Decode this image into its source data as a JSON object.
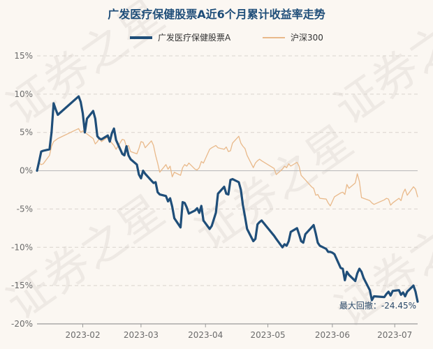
{
  "chart_data": {
    "type": "line",
    "title": "广发医疗保健股票A近6个月累计收益率走势",
    "legend_position": "top-center",
    "grid": "horizontal dashed",
    "x_ticks": [
      "2023-02",
      "2023-03",
      "2023-04",
      "2023-05",
      "2023-06",
      "2023-07"
    ],
    "y_ticks": [
      "15%",
      "10%",
      "5%",
      "0%",
      "-5%",
      "-10%",
      "-15%",
      "-20%"
    ],
    "ylim": [
      -20,
      15
    ],
    "x_domain": [
      "2023-01-10",
      "2023-07-12"
    ],
    "annotation": "最大回撤：-24.45%",
    "watermark": "证券之星",
    "max_drawdown_start": "2023-01-26",
    "series": [
      {
        "name": "广发医疗保健股票A",
        "color": "#1f4e79",
        "x": [
          "2023-01-10",
          "2023-01-11",
          "2023-01-12",
          "2023-01-13",
          "2023-01-16",
          "2023-01-17",
          "2023-01-18",
          "2023-01-19",
          "2023-01-20",
          "2023-01-30",
          "2023-01-31",
          "2023-02-01",
          "2023-02-02",
          "2023-02-03",
          "2023-02-06",
          "2023-02-07",
          "2023-02-08",
          "2023-02-09",
          "2023-02-10",
          "2023-02-13",
          "2023-02-14",
          "2023-02-15",
          "2023-02-16",
          "2023-02-17",
          "2023-02-20",
          "2023-02-21",
          "2023-02-22",
          "2023-02-23",
          "2023-02-24",
          "2023-02-27",
          "2023-02-28",
          "2023-03-01",
          "2023-03-02",
          "2023-03-03",
          "2023-03-06",
          "2023-03-07",
          "2023-03-08",
          "2023-03-09",
          "2023-03-10",
          "2023-03-13",
          "2023-03-14",
          "2023-03-15",
          "2023-03-16",
          "2023-03-17",
          "2023-03-20",
          "2023-03-21",
          "2023-03-22",
          "2023-03-23",
          "2023-03-24",
          "2023-03-27",
          "2023-03-28",
          "2023-03-29",
          "2023-03-30",
          "2023-03-31",
          "2023-04-03",
          "2023-04-04",
          "2023-04-06",
          "2023-04-07",
          "2023-04-10",
          "2023-04-11",
          "2023-04-12",
          "2023-04-13",
          "2023-04-14",
          "2023-04-17",
          "2023-04-18",
          "2023-04-19",
          "2023-04-20",
          "2023-04-21",
          "2023-04-24",
          "2023-04-25",
          "2023-04-26",
          "2023-04-27",
          "2023-04-28",
          "2023-05-04",
          "2023-05-05",
          "2023-05-08",
          "2023-05-09",
          "2023-05-10",
          "2023-05-11",
          "2023-05-12",
          "2023-05-15",
          "2023-05-16",
          "2023-05-17",
          "2023-05-18",
          "2023-05-19",
          "2023-05-22",
          "2023-05-23",
          "2023-05-24",
          "2023-05-25",
          "2023-05-26",
          "2023-05-29",
          "2023-05-30",
          "2023-05-31",
          "2023-06-01",
          "2023-06-02",
          "2023-06-05",
          "2023-06-06",
          "2023-06-07",
          "2023-06-08",
          "2023-06-09",
          "2023-06-12",
          "2023-06-13",
          "2023-06-14",
          "2023-06-15",
          "2023-06-16",
          "2023-06-19",
          "2023-06-20",
          "2023-06-21",
          "2023-06-26",
          "2023-06-27",
          "2023-06-28",
          "2023-06-29",
          "2023-06-30",
          "2023-07-03",
          "2023-07-04",
          "2023-07-05",
          "2023-07-06",
          "2023-07-07",
          "2023-07-10",
          "2023-07-11",
          "2023-07-12"
        ],
        "values": [
          0,
          1.2,
          2.5,
          2.6,
          2.8,
          5.0,
          8.8,
          8.0,
          7.3,
          9.7,
          9.0,
          7.5,
          5.0,
          6.8,
          7.8,
          6.8,
          4.5,
          4.2,
          4.1,
          4.6,
          3.8,
          4.9,
          5.5,
          4.0,
          2.2,
          2.0,
          3.2,
          2.0,
          1.5,
          0.8,
          -0.5,
          -1.0,
          0.0,
          -0.4,
          -1.3,
          -1.6,
          -1.5,
          -2.8,
          -3.1,
          -3.3,
          -4.0,
          -3.6,
          -4.7,
          -6.2,
          -7.4,
          -4.1,
          -4.2,
          -4.8,
          -5.6,
          -5.2,
          -4.9,
          -5.5,
          -4.6,
          -6.5,
          -7.6,
          -7.2,
          -5.5,
          -3.0,
          -2.1,
          -3.0,
          -3.1,
          -1.2,
          -1.1,
          -1.5,
          -2.5,
          -4.5,
          -6.0,
          -7.6,
          -9.2,
          -8.9,
          -7.0,
          -6.7,
          -6.5,
          -8.5,
          -8.9,
          -10.0,
          -9.6,
          -9.8,
          -9.2,
          -8.0,
          -7.5,
          -8.3,
          -9.2,
          -9.4,
          -8.3,
          -7.4,
          -7.1,
          -8.2,
          -9.4,
          -9.8,
          -10.2,
          -10.6,
          -10.6,
          -10.7,
          -10.9,
          -12.7,
          -12.8,
          -14.3,
          -13.2,
          -13.6,
          -14.4,
          -13.4,
          -12.8,
          -13.2,
          -14.0,
          -15.6,
          -16.9,
          -16.4,
          -16.5,
          -16.1,
          -15.8,
          -16.3,
          -15.7,
          -15.6,
          -16.2,
          -15.9,
          -16.4,
          -15.8,
          -15.0,
          -15.8,
          -17.1
        ]
      },
      {
        "name": "沪深300",
        "color": "#e9b98a",
        "x": [
          "2023-01-10",
          "2023-01-11",
          "2023-01-12",
          "2023-01-13",
          "2023-01-16",
          "2023-01-17",
          "2023-01-18",
          "2023-01-19",
          "2023-01-20",
          "2023-01-30",
          "2023-01-31",
          "2023-02-01",
          "2023-02-02",
          "2023-02-03",
          "2023-02-06",
          "2023-02-07",
          "2023-02-08",
          "2023-02-09",
          "2023-02-10",
          "2023-02-13",
          "2023-02-14",
          "2023-02-15",
          "2023-02-16",
          "2023-02-17",
          "2023-02-20",
          "2023-02-21",
          "2023-02-22",
          "2023-02-23",
          "2023-02-24",
          "2023-02-27",
          "2023-02-28",
          "2023-03-01",
          "2023-03-02",
          "2023-03-03",
          "2023-03-06",
          "2023-03-07",
          "2023-03-08",
          "2023-03-09",
          "2023-03-10",
          "2023-03-13",
          "2023-03-14",
          "2023-03-15",
          "2023-03-16",
          "2023-03-17",
          "2023-03-20",
          "2023-03-21",
          "2023-03-22",
          "2023-03-23",
          "2023-03-24",
          "2023-03-27",
          "2023-03-28",
          "2023-03-29",
          "2023-03-30",
          "2023-03-31",
          "2023-04-03",
          "2023-04-04",
          "2023-04-06",
          "2023-04-07",
          "2023-04-10",
          "2023-04-11",
          "2023-04-12",
          "2023-04-13",
          "2023-04-14",
          "2023-04-17",
          "2023-04-18",
          "2023-04-19",
          "2023-04-20",
          "2023-04-21",
          "2023-04-24",
          "2023-04-25",
          "2023-04-26",
          "2023-04-27",
          "2023-04-28",
          "2023-05-04",
          "2023-05-05",
          "2023-05-08",
          "2023-05-09",
          "2023-05-10",
          "2023-05-11",
          "2023-05-12",
          "2023-05-15",
          "2023-05-16",
          "2023-05-17",
          "2023-05-18",
          "2023-05-19",
          "2023-05-22",
          "2023-05-23",
          "2023-05-24",
          "2023-05-25",
          "2023-05-26",
          "2023-05-29",
          "2023-05-30",
          "2023-05-31",
          "2023-06-01",
          "2023-06-02",
          "2023-06-05",
          "2023-06-06",
          "2023-06-07",
          "2023-06-08",
          "2023-06-09",
          "2023-06-12",
          "2023-06-13",
          "2023-06-14",
          "2023-06-15",
          "2023-06-16",
          "2023-06-19",
          "2023-06-20",
          "2023-06-21",
          "2023-06-26",
          "2023-06-27",
          "2023-06-28",
          "2023-06-29",
          "2023-06-30",
          "2023-07-03",
          "2023-07-04",
          "2023-07-05",
          "2023-07-06",
          "2023-07-07",
          "2023-07-10",
          "2023-07-11",
          "2023-07-12"
        ],
        "values": [
          0,
          1.0,
          0.8,
          0.9,
          2.0,
          3.2,
          3.8,
          4.0,
          4.2,
          5.5,
          5.0,
          5.2,
          5.0,
          4.8,
          4.2,
          3.5,
          3.8,
          4.2,
          3.8,
          4.4,
          4.0,
          3.6,
          3.3,
          2.8,
          4.1,
          4.0,
          3.1,
          3.3,
          2.5,
          2.2,
          2.9,
          3.8,
          3.7,
          3.0,
          3.9,
          3.3,
          2.0,
          1.0,
          -0.2,
          0.8,
          0.2,
          0.6,
          -0.8,
          -0.2,
          -0.6,
          0.4,
          0.8,
          0.6,
          1.0,
          0.2,
          0.1,
          0.4,
          1.2,
          1.0,
          2.8,
          3.0,
          3.3,
          3.0,
          2.8,
          3.1,
          2.5,
          2.6,
          3.6,
          4.5,
          3.6,
          3.2,
          2.9,
          2.0,
          0.4,
          1.0,
          1.3,
          1.5,
          1.3,
          0.3,
          -0.5,
          0.2,
          0.6,
          0.4,
          0.9,
          0.6,
          1.1,
          0.6,
          -0.6,
          -0.9,
          -1.2,
          -2.1,
          -2.3,
          -3.2,
          -3.1,
          -3.6,
          -3.7,
          -4.2,
          -4.6,
          -4.0,
          -3.4,
          -2.9,
          -2.8,
          -3.1,
          -1.8,
          -2.3,
          -1.6,
          -0.4,
          -1.4,
          -3.5,
          -3.6,
          -3.9,
          -4.2,
          -4.4,
          -3.8,
          -3.6,
          -3.7,
          -4.5,
          -4.2,
          -3.6,
          -3.9,
          -2.9,
          -2.4,
          -3.2,
          -2.1,
          -2.4,
          -3.4
        ]
      }
    ]
  }
}
